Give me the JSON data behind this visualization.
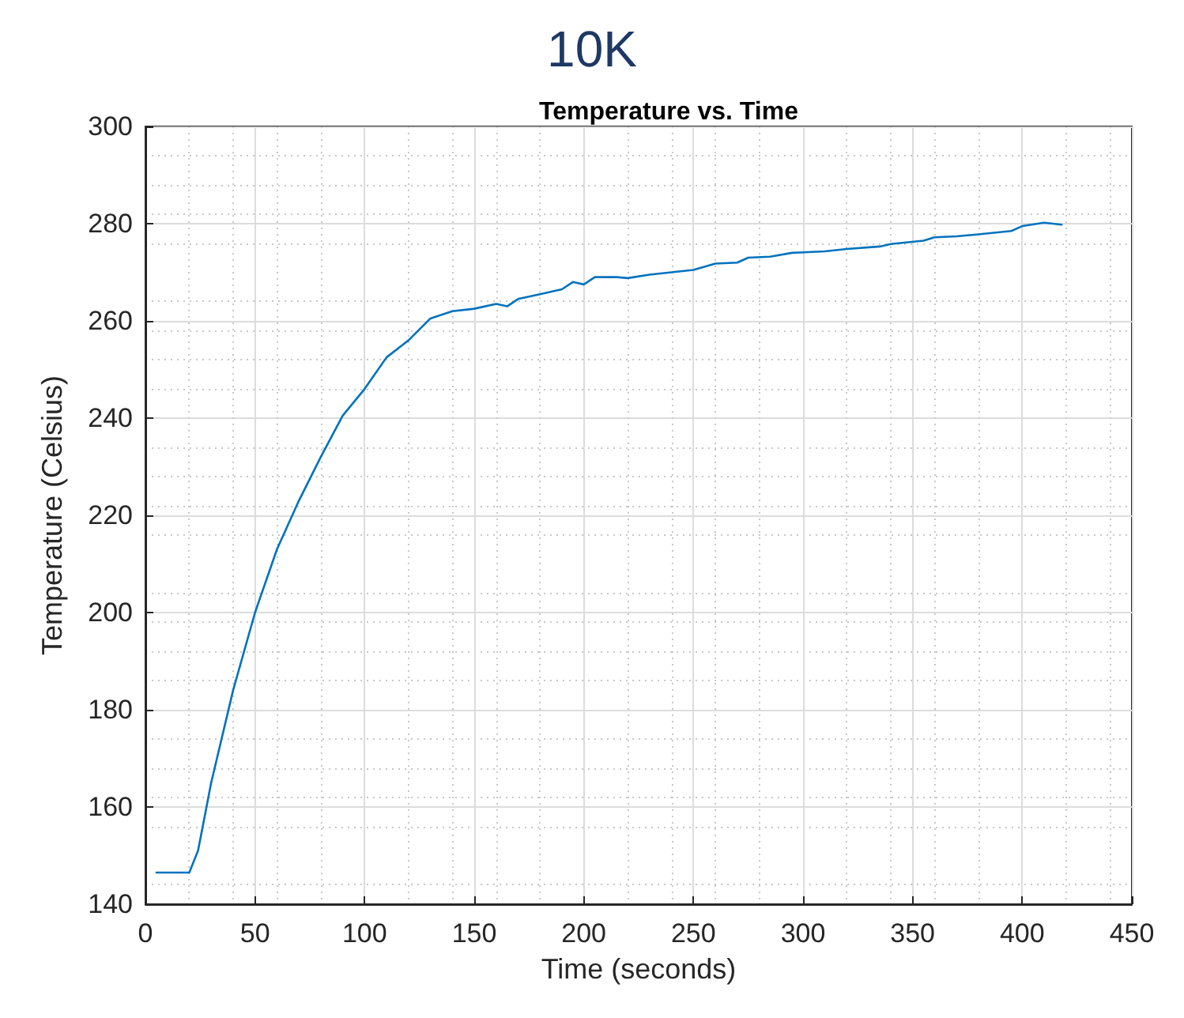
{
  "chart_data": {
    "type": "line",
    "title": "10K",
    "subtitle": "Temperature vs. Time",
    "xlabel": "Time (seconds)",
    "ylabel": "Temperature (Celsius)",
    "x": [
      5,
      20,
      24,
      30,
      40,
      50,
      60,
      70,
      80,
      90,
      100,
      110,
      120,
      130,
      140,
      150,
      160,
      165,
      170,
      180,
      190,
      195,
      200,
      205,
      215,
      220,
      230,
      250,
      260,
      270,
      275,
      285,
      295,
      310,
      320,
      335,
      340,
      355,
      360,
      370,
      380,
      395,
      400,
      410,
      418
    ],
    "series": [
      {
        "color": "#0072bd",
        "values": [
          146.5,
          146.5,
          151,
          165,
          184,
          200,
          213,
          223,
          232,
          240.5,
          246,
          252.5,
          256,
          260.5,
          262,
          262.5,
          263.5,
          263,
          264.5,
          265.5,
          266.5,
          268,
          267.5,
          269,
          269,
          268.8,
          269.5,
          270.5,
          271.8,
          272,
          273,
          273.2,
          274,
          274.3,
          274.8,
          275.3,
          275.8,
          276.5,
          277.2,
          277.4,
          277.8,
          278.5,
          279.5,
          280.2,
          279.8
        ]
      }
    ],
    "xlim": [
      0,
      450
    ],
    "xticks": [
      0,
      50,
      100,
      150,
      200,
      250,
      300,
      350,
      400,
      450
    ],
    "ylim": [
      140,
      300
    ],
    "yticks": [
      140,
      160,
      180,
      200,
      220,
      240,
      260,
      280,
      300
    ],
    "grid": true,
    "marker": "none",
    "line_style": "solid"
  }
}
